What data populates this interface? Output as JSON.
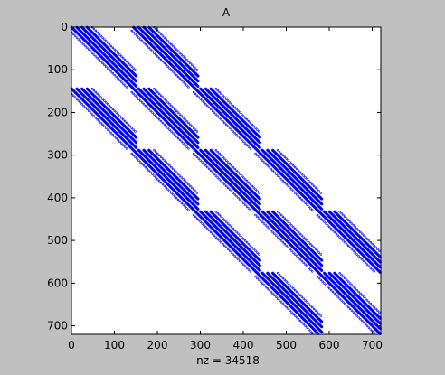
{
  "colors": {
    "figure_bg": "#c0c0c0",
    "axes_bg": "#ffffff",
    "marker": "#0000ff"
  },
  "chart_data": {
    "type": "scatter",
    "subtype": "sparsity-pattern",
    "title": "A",
    "xlabel": "nz = 34518",
    "ylabel": "",
    "nz": 34518,
    "matrix_size": [
      720,
      720
    ],
    "xlim": [
      0,
      720
    ],
    "ylim": [
      720,
      0
    ],
    "y_axis_direction": "reversed",
    "xticks": [
      0,
      100,
      200,
      300,
      400,
      500,
      600,
      700
    ],
    "yticks": [
      0,
      100,
      200,
      300,
      400,
      500,
      600,
      700
    ],
    "grid": false,
    "legend": "none",
    "block_size": 144,
    "block_offsets": [
      0,
      144,
      288,
      432,
      576
    ],
    "diagonal_bands": [
      {
        "column_offset": -144,
        "row_start": 144,
        "row_end": 720
      },
      {
        "column_offset": 0,
        "row_start": 0,
        "row_end": 720
      },
      {
        "column_offset": 144,
        "row_start": 0,
        "row_end": 576
      }
    ],
    "stripes_per_band": [
      {
        "offset": -12,
        "style": "sparse"
      },
      {
        "offset": 0,
        "style": "dense"
      },
      {
        "offset": 12,
        "style": "dense"
      },
      {
        "offset": 24,
        "style": "dense"
      },
      {
        "offset": 36,
        "style": "dense"
      },
      {
        "offset": 48,
        "style": "sparse"
      }
    ]
  }
}
